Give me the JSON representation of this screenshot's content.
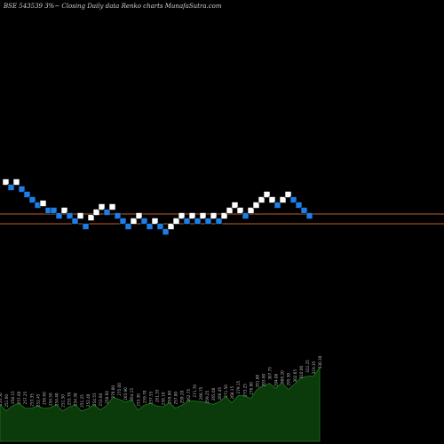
{
  "chart_data": {
    "type": "renko",
    "title": "BSE 543539 3%~  Closing Daily data  Renko  charts MunafaSutra.com",
    "colors": {
      "background": "#000000",
      "up_brick": "#ffffff",
      "down_brick": "#1e7ee6",
      "reference_line": "#c0602a",
      "volume_fill": "#0b3a0b",
      "volume_edge": "#1f7a1f",
      "volume_label": "#b8b8b8"
    },
    "reference_lines": [
      241,
      252
    ],
    "bricks": [
      {
        "dir": "up",
        "level": 205
      },
      {
        "dir": "down",
        "level": 211
      },
      {
        "dir": "up",
        "level": 205
      },
      {
        "dir": "down",
        "level": 213
      },
      {
        "dir": "down",
        "level": 219
      },
      {
        "dir": "down",
        "level": 225
      },
      {
        "dir": "down",
        "level": 231
      },
      {
        "dir": "up",
        "level": 229
      },
      {
        "dir": "down",
        "level": 237
      },
      {
        "dir": "down",
        "level": 237
      },
      {
        "dir": "down",
        "level": 243
      },
      {
        "dir": "up",
        "level": 237
      },
      {
        "dir": "down",
        "level": 243
      },
      {
        "dir": "down",
        "level": 249
      },
      {
        "dir": "up",
        "level": 243
      },
      {
        "dir": "down",
        "level": 255
      },
      {
        "dir": "up",
        "level": 245
      },
      {
        "dir": "up",
        "level": 239
      },
      {
        "dir": "up",
        "level": 233
      },
      {
        "dir": "down",
        "level": 239
      },
      {
        "dir": "up",
        "level": 233
      },
      {
        "dir": "down",
        "level": 243
      },
      {
        "dir": "down",
        "level": 249
      },
      {
        "dir": "down",
        "level": 255
      },
      {
        "dir": "up",
        "level": 249
      },
      {
        "dir": "up",
        "level": 243
      },
      {
        "dir": "down",
        "level": 249
      },
      {
        "dir": "down",
        "level": 255
      },
      {
        "dir": "up",
        "level": 249
      },
      {
        "dir": "down",
        "level": 255
      },
      {
        "dir": "down",
        "level": 261
      },
      {
        "dir": "up",
        "level": 255
      },
      {
        "dir": "up",
        "level": 249
      },
      {
        "dir": "up",
        "level": 243
      },
      {
        "dir": "down",
        "level": 249
      },
      {
        "dir": "up",
        "level": 243
      },
      {
        "dir": "down",
        "level": 249
      },
      {
        "dir": "up",
        "level": 243
      },
      {
        "dir": "down",
        "level": 249
      },
      {
        "dir": "up",
        "level": 243
      },
      {
        "dir": "down",
        "level": 249
      },
      {
        "dir": "up",
        "level": 243
      },
      {
        "dir": "up",
        "level": 237
      },
      {
        "dir": "up",
        "level": 231
      },
      {
        "dir": "up",
        "level": 237
      },
      {
        "dir": "down",
        "level": 243
      },
      {
        "dir": "up",
        "level": 237
      },
      {
        "dir": "up",
        "level": 231
      },
      {
        "dir": "up",
        "level": 225
      },
      {
        "dir": "up",
        "level": 219
      },
      {
        "dir": "up",
        "level": 225
      },
      {
        "dir": "down",
        "level": 231
      },
      {
        "dir": "up",
        "level": 225
      },
      {
        "dir": "up",
        "level": 219
      },
      {
        "dir": "down",
        "level": 225
      },
      {
        "dir": "down",
        "level": 231
      },
      {
        "dir": "down",
        "level": 237
      },
      {
        "dir": "down",
        "level": 243
      }
    ],
    "volume_labels": [
      "254.50",
      "251.60",
      "258.15",
      "257.60",
      "257.25",
      "253.35",
      "252.45",
      "256.60",
      "254.50",
      "254.40",
      "251.50",
      "255.70",
      "254.30",
      "251.25",
      "252.40",
      "254.55",
      "253.60",
      "258.60",
      "270.00",
      "275.00",
      "265.90",
      "264.15",
      "253.30",
      "259.70",
      "257.55",
      "261.55",
      "256.10",
      "259.00",
      "257.00",
      "259.20",
      "262.75",
      "271.70",
      "266.75",
      "259.25",
      "265.00",
      "266.45",
      "271.50",
      "268.15",
      "279.15",
      "273.25",
      "276.90",
      "291.80",
      "293.90",
      "307.75",
      "294.00",
      "300.20",
      "295.30",
      "302.65",
      "310.00",
      "322.25",
      "319.35",
      "330.30"
    ]
  }
}
